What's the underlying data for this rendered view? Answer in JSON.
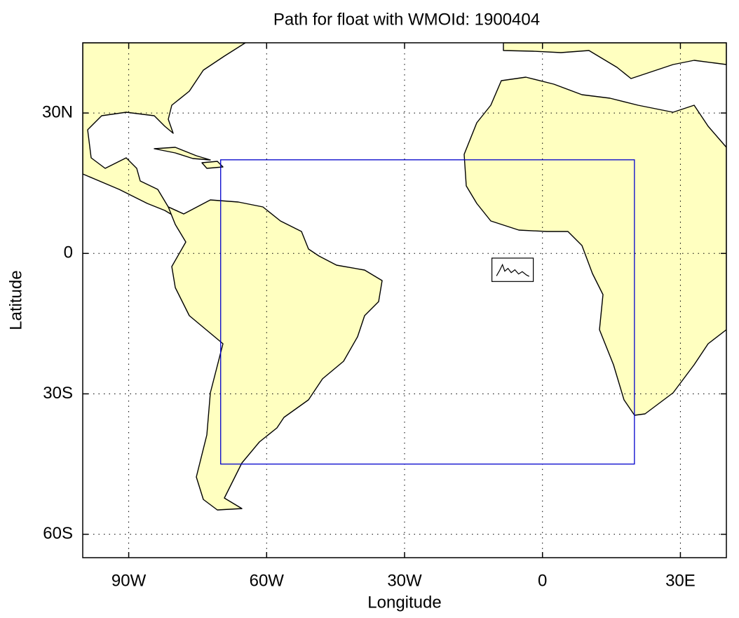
{
  "chart_data": {
    "type": "map",
    "title": "Path for float with WMOId: 1900404",
    "xlabel": "Longitude",
    "ylabel": "Latitude",
    "xlim": [
      -100,
      40
    ],
    "ylim": [
      -65,
      45
    ],
    "xticks": [
      {
        "value": -90,
        "label": "90W"
      },
      {
        "value": -60,
        "label": "60W"
      },
      {
        "value": -30,
        "label": "30W"
      },
      0,
      {
        "value": 30,
        "label": "30E"
      }
    ],
    "yticks": [
      {
        "value": 30,
        "label": "30N"
      },
      0,
      {
        "value": -30,
        "label": "30S"
      },
      {
        "value": -60,
        "label": "60S"
      }
    ],
    "grid": true,
    "land_color": "#ffffc0",
    "region": {
      "color": "#0000cc",
      "lon": [
        -70,
        20
      ],
      "lat": [
        -45,
        20
      ]
    },
    "float_box": {
      "color": "#000000",
      "lon": [
        -11,
        -2
      ],
      "lat": [
        -6,
        -1
      ]
    },
    "track": {
      "color": "#000000",
      "lon": [
        -10,
        -9.3,
        -8.7,
        -8.2,
        -7.5,
        -6.8,
        -6,
        -5.2,
        -4.4,
        -3.5,
        -2.9
      ],
      "lat": [
        -4.8,
        -3.6,
        -2.4,
        -3.8,
        -3.2,
        -4.1,
        -3.5,
        -4.4,
        -3.9,
        -4.6,
        -4.9
      ]
    }
  }
}
